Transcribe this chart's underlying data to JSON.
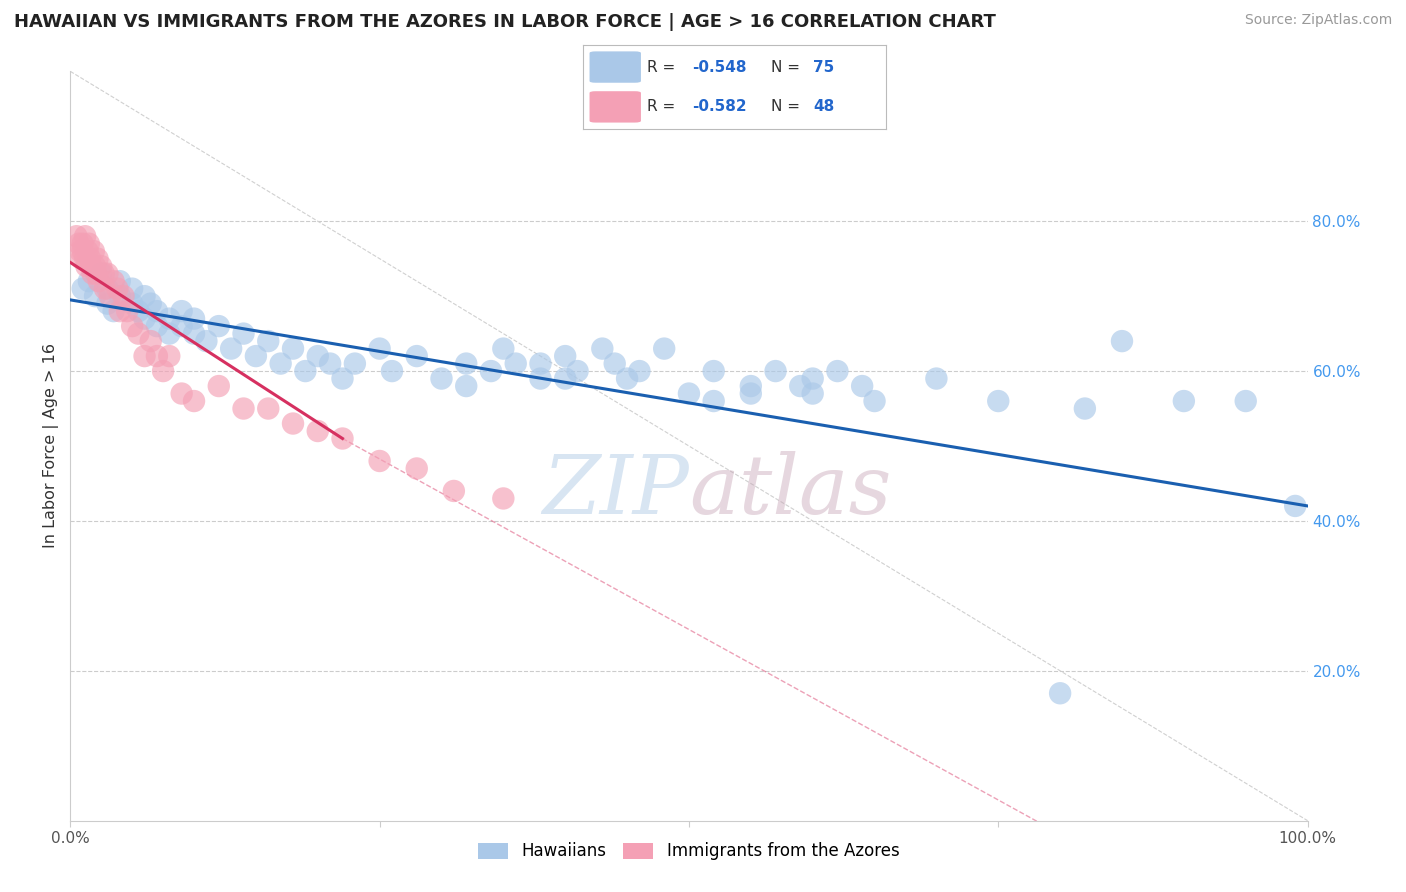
{
  "title": "HAWAIIAN VS IMMIGRANTS FROM THE AZORES IN LABOR FORCE | AGE > 16 CORRELATION CHART",
  "source": "Source: ZipAtlas.com",
  "ylabel": "In Labor Force | Age > 16",
  "xlim": [
    0.0,
    1.0
  ],
  "ylim": [
    0.0,
    1.0
  ],
  "xtick_positions": [
    0.0,
    0.25,
    0.5,
    0.75,
    1.0
  ],
  "xtick_labels": [
    "0.0%",
    "",
    "",
    "",
    "100.0%"
  ],
  "ytick_positions_right": [
    0.2,
    0.4,
    0.6,
    0.8
  ],
  "ytick_labels_right": [
    "20.0%",
    "40.0%",
    "60.0%",
    "80.0%"
  ],
  "legend_blue_r": "-0.548",
  "legend_blue_n": "75",
  "legend_pink_r": "-0.582",
  "legend_pink_n": "48",
  "blue_color": "#aac8e8",
  "pink_color": "#f4a0b5",
  "blue_line_color": "#1a5fb0",
  "pink_line_color": "#d63060",
  "background_color": "#ffffff",
  "grid_color": "#cccccc",
  "title_color": "#222222",
  "source_color": "#999999",
  "blue_scatter_x": [
    0.01,
    0.015,
    0.02,
    0.025,
    0.03,
    0.03,
    0.035,
    0.04,
    0.04,
    0.05,
    0.05,
    0.055,
    0.06,
    0.06,
    0.065,
    0.07,
    0.07,
    0.08,
    0.08,
    0.09,
    0.09,
    0.1,
    0.1,
    0.11,
    0.12,
    0.13,
    0.14,
    0.15,
    0.16,
    0.17,
    0.18,
    0.19,
    0.2,
    0.21,
    0.22,
    0.23,
    0.25,
    0.26,
    0.28,
    0.3,
    0.32,
    0.32,
    0.34,
    0.35,
    0.36,
    0.38,
    0.4,
    0.41,
    0.43,
    0.44,
    0.46,
    0.48,
    0.5,
    0.52,
    0.55,
    0.57,
    0.59,
    0.6,
    0.62,
    0.64,
    0.52,
    0.4,
    0.38,
    0.45,
    0.55,
    0.6,
    0.65,
    0.7,
    0.75,
    0.82,
    0.85,
    0.9,
    0.95,
    0.99,
    0.8
  ],
  "blue_scatter_y": [
    0.71,
    0.72,
    0.7,
    0.73,
    0.69,
    0.71,
    0.68,
    0.72,
    0.7,
    0.69,
    0.71,
    0.68,
    0.7,
    0.67,
    0.69,
    0.66,
    0.68,
    0.67,
    0.65,
    0.68,
    0.66,
    0.65,
    0.67,
    0.64,
    0.66,
    0.63,
    0.65,
    0.62,
    0.64,
    0.61,
    0.63,
    0.6,
    0.62,
    0.61,
    0.59,
    0.61,
    0.63,
    0.6,
    0.62,
    0.59,
    0.61,
    0.58,
    0.6,
    0.63,
    0.61,
    0.59,
    0.62,
    0.6,
    0.63,
    0.61,
    0.6,
    0.63,
    0.57,
    0.6,
    0.58,
    0.6,
    0.58,
    0.57,
    0.6,
    0.58,
    0.56,
    0.59,
    0.61,
    0.59,
    0.57,
    0.59,
    0.56,
    0.59,
    0.56,
    0.55,
    0.64,
    0.56,
    0.56,
    0.42,
    0.17
  ],
  "pink_scatter_x": [
    0.005,
    0.007,
    0.008,
    0.009,
    0.01,
    0.01,
    0.012,
    0.012,
    0.013,
    0.014,
    0.015,
    0.016,
    0.017,
    0.018,
    0.019,
    0.02,
    0.021,
    0.022,
    0.023,
    0.025,
    0.027,
    0.028,
    0.03,
    0.032,
    0.035,
    0.038,
    0.04,
    0.043,
    0.046,
    0.05,
    0.055,
    0.06,
    0.065,
    0.07,
    0.075,
    0.08,
    0.09,
    0.1,
    0.12,
    0.14,
    0.16,
    0.18,
    0.2,
    0.22,
    0.25,
    0.28,
    0.31,
    0.35
  ],
  "pink_scatter_y": [
    0.78,
    0.77,
    0.76,
    0.75,
    0.77,
    0.76,
    0.78,
    0.75,
    0.74,
    0.76,
    0.77,
    0.75,
    0.74,
    0.73,
    0.76,
    0.74,
    0.73,
    0.75,
    0.72,
    0.74,
    0.73,
    0.71,
    0.73,
    0.7,
    0.72,
    0.71,
    0.68,
    0.7,
    0.68,
    0.66,
    0.65,
    0.62,
    0.64,
    0.62,
    0.6,
    0.62,
    0.57,
    0.56,
    0.58,
    0.55,
    0.55,
    0.53,
    0.52,
    0.51,
    0.48,
    0.47,
    0.44,
    0.43
  ],
  "blue_trend": [
    0.0,
    1.0,
    0.695,
    0.42
  ],
  "pink_trend_solid": [
    0.0,
    0.22,
    0.745,
    0.51
  ],
  "pink_trend_dashed": [
    0.22,
    1.0,
    0.51,
    -0.2
  ],
  "diag_line": [
    0.0,
    1.0,
    1.0,
    0.0
  ]
}
